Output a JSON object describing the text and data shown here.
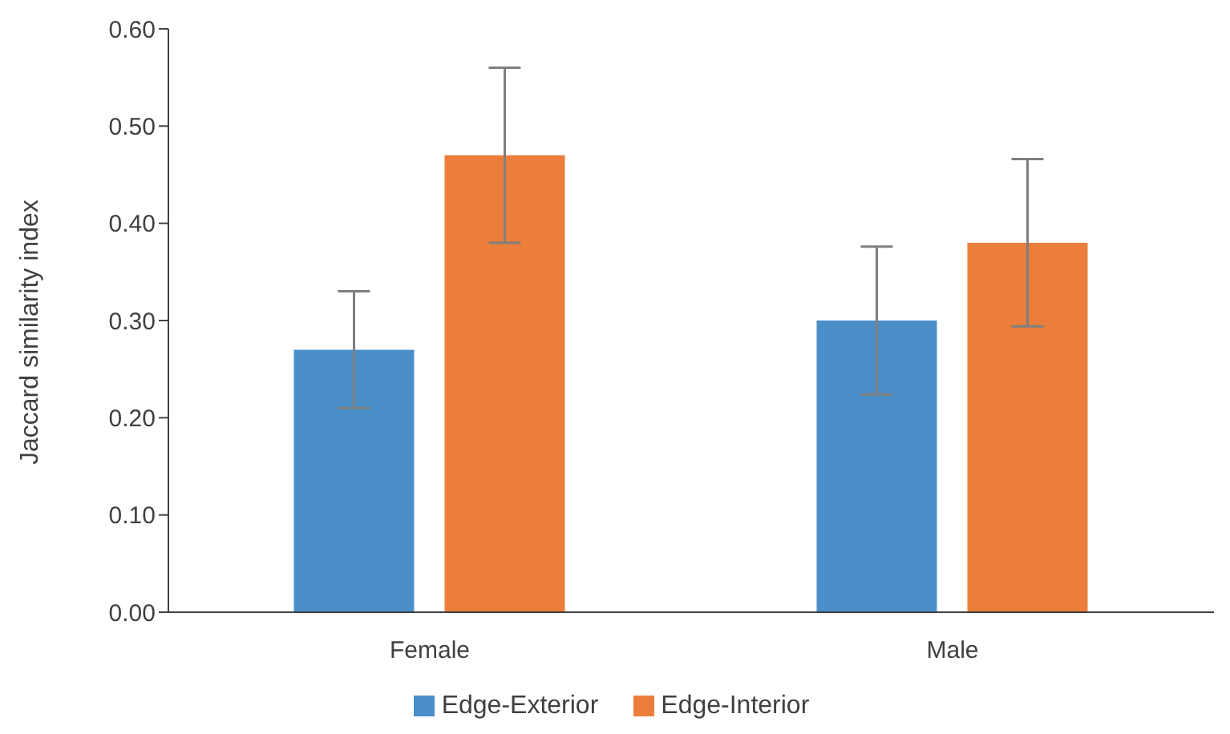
{
  "chart_data": {
    "type": "bar",
    "ylabel": "Jaccard similarity index",
    "categories": [
      "Female",
      "Male"
    ],
    "series": [
      {
        "name": "Edge-Exterior",
        "color": "#4a8fc8",
        "values": [
          0.27,
          0.3
        ],
        "errors": [
          0.06,
          0.076
        ]
      },
      {
        "name": "Edge-Interior",
        "color": "#eb7e3b",
        "values": [
          0.47,
          0.38
        ],
        "errors": [
          0.09,
          0.086
        ]
      }
    ],
    "ylim": [
      0,
      0.6
    ],
    "yticks": [
      {
        "value": 0,
        "label": "0.00"
      },
      {
        "value": 0.1,
        "label": "0.10"
      },
      {
        "value": 0.2,
        "label": "0.20"
      },
      {
        "value": 0.3,
        "label": "0.30"
      },
      {
        "value": 0.4,
        "label": "0.40"
      },
      {
        "value": 0.5,
        "label": "0.50"
      },
      {
        "value": 0.6,
        "label": "0.60"
      }
    ],
    "grid": false,
    "legend": "bottom"
  }
}
